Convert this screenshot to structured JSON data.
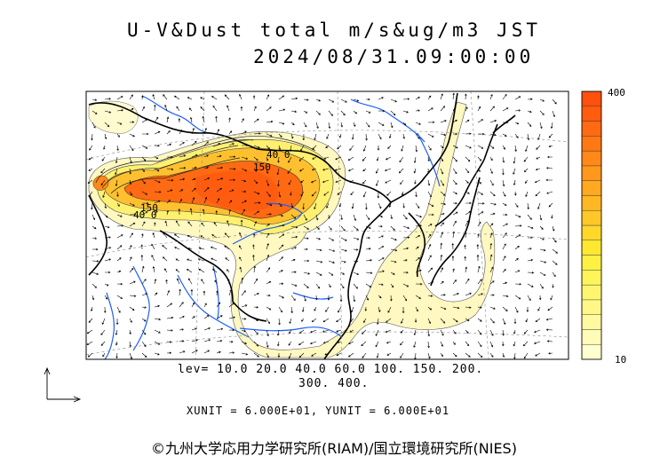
{
  "title": "U-V&Dust total m/s&ug/m3 JST",
  "datetime": "2024/08/31.09:00:00",
  "colorbar": {
    "max_label": "400",
    "min_label": "10",
    "colors": [
      "#ffffd0",
      "#fffcb8",
      "#fffaa0",
      "#fff888",
      "#fff670",
      "#fff45a",
      "#fff044",
      "#ffe832",
      "#ffd82a",
      "#ffc828",
      "#ffb824",
      "#ffa820",
      "#ff981c",
      "#ff8818",
      "#ff7814",
      "#ff6a12",
      "#ff5c10",
      "#ff500e"
    ]
  },
  "contour_labels": [
    "150",
    "40 0",
    "150",
    "40 0"
  ],
  "levels_line1": "lev= 10.0 20.0 40.0 60.0 100. 150. 200.",
  "levels_line2": "300. 400.",
  "units_text": "XUNIT = 6.000E+01, YUNIT = 6.000E+01",
  "credit": "©九州大学応用力学研究所(RIAM)/国立環境研究所(NIES)"
}
